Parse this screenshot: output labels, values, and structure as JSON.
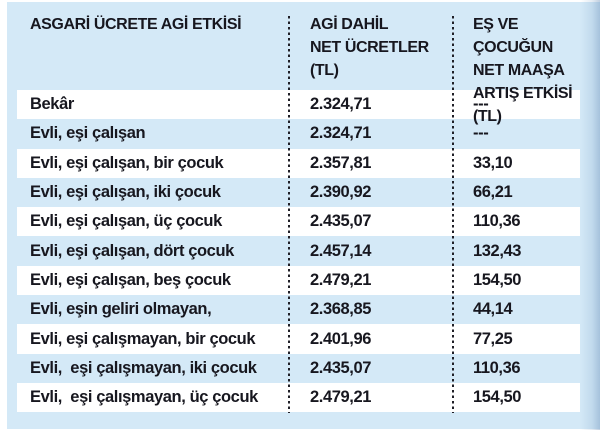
{
  "colors": {
    "table_background": "#d4e9f7",
    "stripe": "#ffffff",
    "text": "#17171f",
    "divider": "#1f1f27"
  },
  "header": {
    "col1_lines": [
      "ASGARİ ÜCRETE AGİ ETKİSİ"
    ],
    "col2_lines": [
      "AGİ DAHİL",
      "NET ÜCRETLER (TL)"
    ],
    "col3_lines": [
      "EŞ VE ÇOCUĞUN",
      "NET MAAŞA",
      "ARTIŞ ETKİSİ (TL)"
    ]
  },
  "rows": [
    {
      "label": "Bekâr",
      "net_wage": "2.324,71",
      "increase": "---"
    },
    {
      "label": "Evli, eşi çalışan",
      "net_wage": "2.324,71",
      "increase": "---"
    },
    {
      "label": "Evli, eşi çalışan, bir çocuk",
      "net_wage": "2.357,81",
      "increase": "33,10"
    },
    {
      "label": "Evli, eşi çalışan, iki çocuk",
      "net_wage": "2.390,92",
      "increase": "66,21"
    },
    {
      "label": "Evli, eşi çalışan, üç çocuk",
      "net_wage": "2.435,07",
      "increase": "110,36"
    },
    {
      "label": "Evli, eşi çalışan, dört çocuk",
      "net_wage": "2.457,14",
      "increase": "132,43"
    },
    {
      "label": "Evli, eşi çalışan, beş çocuk",
      "net_wage": "2.479,21",
      "increase": "154,50"
    },
    {
      "label": "Evli, eşin geliri olmayan,",
      "net_wage": "2.368,85",
      "increase": "44,14"
    },
    {
      "label": "Evli, eşi çalışmayan, bir çocuk",
      "net_wage": "2.401,96",
      "increase": "77,25"
    },
    {
      "label": "Evli,  eşi çalışmayan, iki çocuk",
      "net_wage": "2.435,07",
      "increase": "110,36"
    },
    {
      "label": "Evli,  eşi çalışmayan, üç çocuk",
      "net_wage": "2.479,21",
      "increase": "154,50"
    }
  ],
  "chart_data": {
    "type": "table",
    "title": "ASGARİ ÜCRETE AGİ ETKİSİ",
    "columns": [
      "ASGARİ ÜCRETE AGİ ETKİSİ",
      "AGİ DAHİL NET ÜCRETLER (TL)",
      "EŞ VE ÇOCUĞUN NET MAAŞA ARTIŞ ETKİSİ (TL)"
    ],
    "rows": [
      [
        "Bekâr",
        "2.324,71",
        "---"
      ],
      [
        "Evli, eşi çalışan",
        "2.324,71",
        "---"
      ],
      [
        "Evli, eşi çalışan, bir çocuk",
        "2.357,81",
        "33,10"
      ],
      [
        "Evli, eşi çalışan, iki çocuk",
        "2.390,92",
        "66,21"
      ],
      [
        "Evli, eşi çalışan, üç çocuk",
        "2.435,07",
        "110,36"
      ],
      [
        "Evli, eşi çalışan, dört çocuk",
        "2.457,14",
        "132,43"
      ],
      [
        "Evli, eşi çalışan, beş çocuk",
        "2.479,21",
        "154,50"
      ],
      [
        "Evli, eşin geliri olmayan,",
        "2.368,85",
        "44,14"
      ],
      [
        "Evli, eşi çalışmayan, bir çocuk",
        "2.401,96",
        "77,25"
      ],
      [
        "Evli,  eşi çalışmayan, iki çocuk",
        "2.435,07",
        "110,36"
      ],
      [
        "Evli,  eşi çalışmayan, üç çocuk",
        "2.479,21",
        "154,50"
      ]
    ],
    "layout": {
      "striped_rows": true,
      "column_dividers": "dotted",
      "numbers_locale": "tr-TR"
    }
  }
}
